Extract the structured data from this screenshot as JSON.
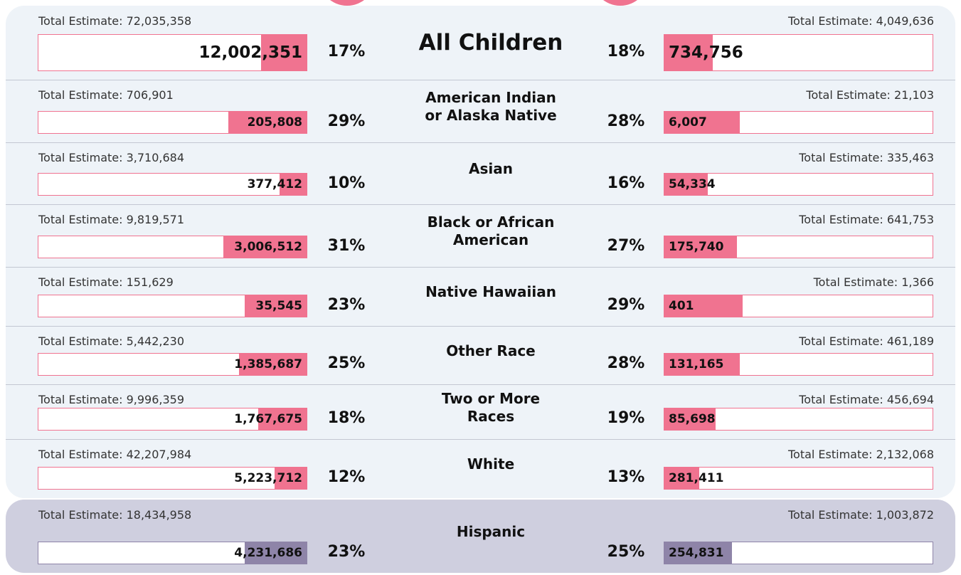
{
  "rows": [
    {
      "label": [
        "All Children"
      ],
      "left": {
        "total": "Total Estimate: 72,035,358",
        "count": "12,002,351",
        "pct": 17,
        "pct_label": "17%"
      },
      "right": {
        "total": "Total Estimate: 4,049,636",
        "count": "734,756",
        "pct": 18,
        "pct_label": "18%"
      }
    },
    {
      "label": [
        "American Indian",
        "or Alaska Native"
      ],
      "left": {
        "total": "Total Estimate: 706,901",
        "count": "205,808",
        "pct": 29,
        "pct_label": "29%"
      },
      "right": {
        "total": "Total Estimate: 21,103",
        "count": "6,007",
        "pct": 28,
        "pct_label": "28%"
      }
    },
    {
      "label": [
        "Asian"
      ],
      "left": {
        "total": "Total Estimate: 3,710,684",
        "count": "377,412",
        "pct": 10,
        "pct_label": "10%"
      },
      "right": {
        "total": "Total Estimate: 335,463",
        "count": "54,334",
        "pct": 16,
        "pct_label": "16%"
      }
    },
    {
      "label": [
        "Black or African",
        "American"
      ],
      "left": {
        "total": "Total Estimate: 9,819,571",
        "count": "3,006,512",
        "pct": 31,
        "pct_label": "31%"
      },
      "right": {
        "total": "Total Estimate: 641,753",
        "count": "175,740",
        "pct": 27,
        "pct_label": "27%"
      }
    },
    {
      "label": [
        "Native Hawaiian"
      ],
      "left": {
        "total": "Total Estimate: 151,629",
        "count": "35,545",
        "pct": 23,
        "pct_label": "23%"
      },
      "right": {
        "total": "Total Estimate: 1,366",
        "count": "401",
        "pct": 29,
        "pct_label": "29%"
      }
    },
    {
      "label": [
        "Other Race"
      ],
      "left": {
        "total": "Total Estimate: 5,442,230",
        "count": "1,385,687",
        "pct": 25,
        "pct_label": "25%"
      },
      "right": {
        "total": "Total Estimate: 461,189",
        "count": "131,165",
        "pct": 28,
        "pct_label": "28%"
      }
    },
    {
      "label": [
        "Two or More",
        "Races"
      ],
      "left": {
        "total": "Total Estimate: 9,996,359",
        "count": "1,767,675",
        "pct": 18,
        "pct_label": "18%"
      },
      "right": {
        "total": "Total Estimate: 456,694",
        "count": "85,698",
        "pct": 19,
        "pct_label": "19%"
      }
    },
    {
      "label": [
        "White"
      ],
      "left": {
        "total": "Total Estimate: 42,207,984",
        "count": "5,223,712",
        "pct": 12,
        "pct_label": "12%"
      },
      "right": {
        "total": "Total Estimate: 2,132,068",
        "count": "281,411",
        "pct": 13,
        "pct_label": "13%"
      }
    },
    {
      "label": [
        "Hispanic"
      ],
      "left": {
        "total": "Total Estimate: 18,434,958",
        "count": "4,231,686",
        "pct": 23,
        "pct_label": "23%"
      },
      "right": {
        "total": "Total Estimate: 1,003,872",
        "count": "254,831",
        "pct": 25,
        "pct_label": "25%"
      }
    }
  ]
}
